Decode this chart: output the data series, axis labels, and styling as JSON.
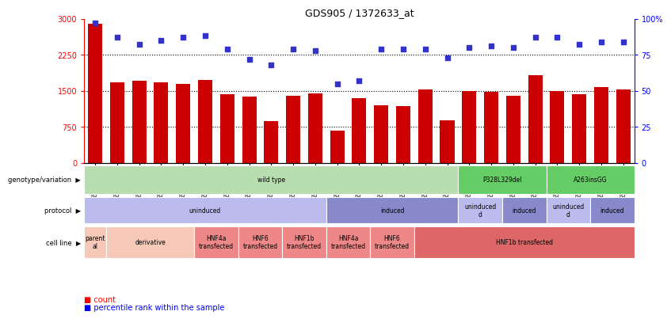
{
  "title": "GDS905 / 1372633_at",
  "samples": [
    "GSM27203",
    "GSM27204",
    "GSM27205",
    "GSM27206",
    "GSM27207",
    "GSM27150",
    "GSM27152",
    "GSM27156",
    "GSM27159",
    "GSM27063",
    "GSM27148",
    "GSM27151",
    "GSM27153",
    "GSM27157",
    "GSM27160",
    "GSM27147",
    "GSM27149",
    "GSM27161",
    "GSM27165",
    "GSM27163",
    "GSM27167",
    "GSM27169",
    "GSM27171",
    "GSM27170",
    "GSM27172"
  ],
  "counts": [
    2900,
    1680,
    1700,
    1680,
    1650,
    1730,
    1420,
    1380,
    870,
    1400,
    1450,
    670,
    1350,
    1200,
    1180,
    1520,
    880,
    1490,
    1470,
    1390,
    1820,
    1490,
    1430,
    1570,
    1520
  ],
  "percentiles": [
    97,
    87,
    82,
    85,
    87,
    88,
    79,
    72,
    68,
    79,
    78,
    55,
    57,
    79,
    79,
    79,
    73,
    80,
    81,
    80,
    87,
    87,
    82,
    84,
    84
  ],
  "bar_color": "#cc0000",
  "dot_color": "#3333cc",
  "ylim_left": [
    0,
    3000
  ],
  "ylim_right": [
    0,
    100
  ],
  "yticks_left": [
    0,
    750,
    1500,
    2250,
    3000
  ],
  "yticks_right": [
    0,
    25,
    50,
    75,
    100
  ],
  "grid_values": [
    750,
    1500,
    2250
  ],
  "genotype_row": {
    "label": "genotype/variation",
    "segments": [
      {
        "text": "wild type",
        "start": 0,
        "end": 17,
        "color": "#b8ddb0"
      },
      {
        "text": "P328L329del",
        "start": 17,
        "end": 21,
        "color": "#66cc66"
      },
      {
        "text": "A263insGG",
        "start": 21,
        "end": 25,
        "color": "#66cc66"
      }
    ]
  },
  "protocol_row": {
    "label": "protocol",
    "segments": [
      {
        "text": "uninduced",
        "start": 0,
        "end": 11,
        "color": "#bbbbee"
      },
      {
        "text": "induced",
        "start": 11,
        "end": 17,
        "color": "#8888cc"
      },
      {
        "text": "uninduced\nd",
        "start": 17,
        "end": 19,
        "color": "#bbbbee"
      },
      {
        "text": "induced",
        "start": 19,
        "end": 21,
        "color": "#8888cc"
      },
      {
        "text": "uninduced\nd",
        "start": 21,
        "end": 23,
        "color": "#bbbbee"
      },
      {
        "text": "induced",
        "start": 23,
        "end": 25,
        "color": "#8888cc"
      }
    ]
  },
  "cellline_row": {
    "label": "cell line",
    "segments": [
      {
        "text": "parent\nal",
        "start": 0,
        "end": 1,
        "color": "#f5c8b8"
      },
      {
        "text": "derivative",
        "start": 1,
        "end": 5,
        "color": "#f5c8b8"
      },
      {
        "text": "HNF4a\ntransfected",
        "start": 5,
        "end": 7,
        "color": "#ee8888"
      },
      {
        "text": "HNF6\ntransfected",
        "start": 7,
        "end": 9,
        "color": "#ee8888"
      },
      {
        "text": "HNF1b\ntransfected",
        "start": 9,
        "end": 11,
        "color": "#ee8888"
      },
      {
        "text": "HNF4a\ntransfected",
        "start": 11,
        "end": 13,
        "color": "#ee8888"
      },
      {
        "text": "HNF6\ntransfected",
        "start": 13,
        "end": 15,
        "color": "#ee8888"
      },
      {
        "text": "HNF1b transfected",
        "start": 15,
        "end": 25,
        "color": "#dd6666"
      }
    ]
  }
}
